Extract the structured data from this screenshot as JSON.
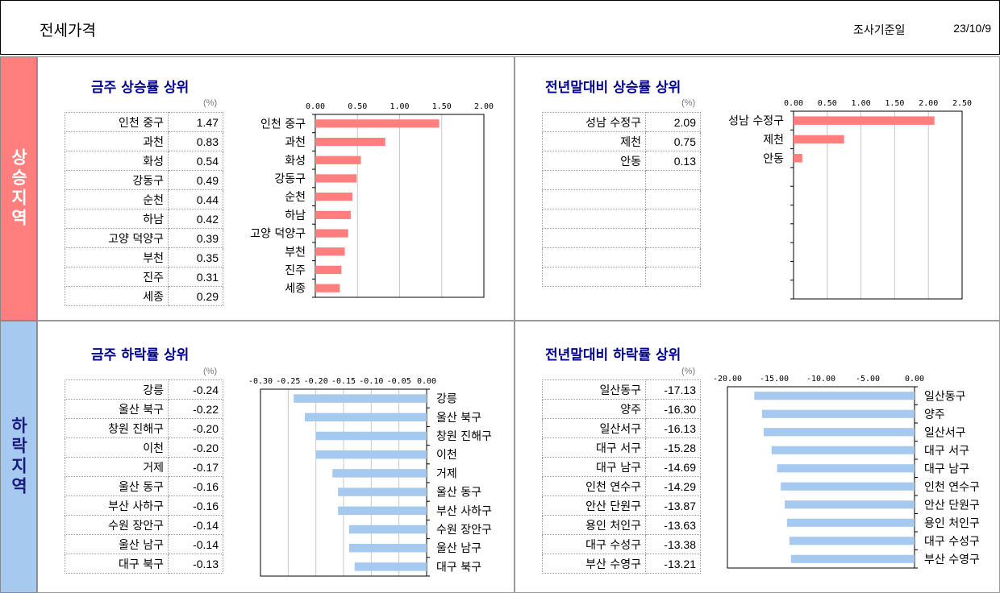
{
  "header": {
    "title": "전세가격",
    "date_label": "조사기준일",
    "date_value": "23/10/9"
  },
  "side": {
    "up": "상승지역",
    "down": "하락지역"
  },
  "colors": {
    "up_bar": "#ff7f7f",
    "down_bar": "#a6c9f0",
    "title": "#00008b"
  },
  "panels": {
    "wu": {
      "title": "금주 상승률 상위",
      "unit": "(%)",
      "rows": [
        {
          "name": "인천 중구",
          "value": "1.47"
        },
        {
          "name": "과천",
          "value": "0.83"
        },
        {
          "name": "화성",
          "value": "0.54"
        },
        {
          "name": "강동구",
          "value": "0.49"
        },
        {
          "name": "순천",
          "value": "0.44"
        },
        {
          "name": "하남",
          "value": "0.42"
        },
        {
          "name": "고양 덕양구",
          "value": "0.39"
        },
        {
          "name": "부천",
          "value": "0.35"
        },
        {
          "name": "진주",
          "value": "0.31"
        },
        {
          "name": "세종",
          "value": "0.29"
        }
      ]
    },
    "yu": {
      "title": "전년말대비 상승률 상위",
      "unit": "(%)",
      "rows": [
        {
          "name": "성남 수정구",
          "value": "2.09"
        },
        {
          "name": "제천",
          "value": "0.75"
        },
        {
          "name": "안동",
          "value": "0.13"
        },
        {
          "name": "",
          "value": ""
        },
        {
          "name": "",
          "value": ""
        },
        {
          "name": "",
          "value": ""
        },
        {
          "name": "",
          "value": ""
        },
        {
          "name": "",
          "value": ""
        },
        {
          "name": "",
          "value": ""
        }
      ]
    },
    "wd": {
      "title": "금주 하락률 상위",
      "unit": "(%)",
      "rows": [
        {
          "name": "강릉",
          "value": "-0.24"
        },
        {
          "name": "울산 북구",
          "value": "-0.22"
        },
        {
          "name": "창원 진해구",
          "value": "-0.20"
        },
        {
          "name": "이천",
          "value": "-0.20"
        },
        {
          "name": "거제",
          "value": "-0.17"
        },
        {
          "name": "울산 동구",
          "value": "-0.16"
        },
        {
          "name": "부산 사하구",
          "value": "-0.16"
        },
        {
          "name": "수원 장안구",
          "value": "-0.14"
        },
        {
          "name": "울산 남구",
          "value": "-0.14"
        },
        {
          "name": "대구 북구",
          "value": "-0.13"
        }
      ]
    },
    "yd": {
      "title": "전년말대비 하락률 상위",
      "unit": "(%)",
      "rows": [
        {
          "name": "일산동구",
          "value": "-17.13"
        },
        {
          "name": "양주",
          "value": "-16.30"
        },
        {
          "name": "일산서구",
          "value": "-16.13"
        },
        {
          "name": "대구 서구",
          "value": "-15.28"
        },
        {
          "name": "대구 남구",
          "value": "-14.69"
        },
        {
          "name": "인천 연수구",
          "value": "-14.29"
        },
        {
          "name": "안산 단원구",
          "value": "-13.87"
        },
        {
          "name": "용인 처인구",
          "value": "-13.63"
        },
        {
          "name": "대구 수성구",
          "value": "-13.38"
        },
        {
          "name": "부산 수영구",
          "value": "-13.21"
        }
      ]
    }
  },
  "chart_data": [
    {
      "type": "bar",
      "orientation": "horizontal",
      "categories": [
        "인천 중구",
        "과천",
        "화성",
        "강동구",
        "순천",
        "하남",
        "고양 덕양구",
        "부천",
        "진주",
        "세종"
      ],
      "values": [
        1.47,
        0.83,
        0.54,
        0.49,
        0.44,
        0.42,
        0.39,
        0.35,
        0.31,
        0.29
      ],
      "xlim": [
        0,
        2.0
      ],
      "ticks": [
        "0.00",
        "0.50",
        "1.00",
        "1.50",
        "2.00"
      ],
      "tick_values": [
        0,
        0.5,
        1.0,
        1.5,
        2.0
      ],
      "grid": true,
      "label_side": "left",
      "color": "#ff7f7f"
    },
    {
      "type": "bar",
      "orientation": "horizontal",
      "categories": [
        "성남 수정구",
        "제천",
        "안동"
      ],
      "values": [
        2.09,
        0.75,
        0.13
      ],
      "xlim": [
        0,
        2.5
      ],
      "ticks": [
        "0.00",
        "0.50",
        "1.00",
        "1.50",
        "2.00",
        "2.50"
      ],
      "tick_values": [
        0,
        0.5,
        1.0,
        1.5,
        2.0,
        2.5
      ],
      "grid": true,
      "label_side": "left",
      "color": "#ff7f7f"
    },
    {
      "type": "bar",
      "orientation": "horizontal",
      "categories": [
        "강릉",
        "울산 북구",
        "창원 진해구",
        "이천",
        "거제",
        "울산 동구",
        "부산 사하구",
        "수원 장안구",
        "울산 남구",
        "대구 북구"
      ],
      "values": [
        -0.24,
        -0.22,
        -0.2,
        -0.2,
        -0.17,
        -0.16,
        -0.16,
        -0.14,
        -0.14,
        -0.13
      ],
      "xlim": [
        -0.3,
        0
      ],
      "ticks": [
        "-0.30",
        "-0.25",
        "-0.20",
        "-0.15",
        "-0.10",
        "-0.05",
        "0.00"
      ],
      "tick_values": [
        -0.3,
        -0.25,
        -0.2,
        -0.15,
        -0.1,
        -0.05,
        0
      ],
      "grid": true,
      "label_side": "right",
      "color": "#a6c9f0"
    },
    {
      "type": "bar",
      "orientation": "horizontal",
      "categories": [
        "일산동구",
        "양주",
        "일산서구",
        "대구 서구",
        "대구 남구",
        "인천 연수구",
        "안산 단원구",
        "용인 처인구",
        "대구 수성구",
        "부산 수영구"
      ],
      "values": [
        -17.13,
        -16.3,
        -16.13,
        -15.28,
        -14.69,
        -14.29,
        -13.87,
        -13.63,
        -13.38,
        -13.21
      ],
      "xlim": [
        -20,
        0
      ],
      "ticks": [
        "-20.00",
        "-15.00",
        "-10.00",
        "-5.00",
        "0.00"
      ],
      "tick_values": [
        -20,
        -15,
        -10,
        -5,
        0
      ],
      "grid": false,
      "label_side": "right",
      "color": "#a6c9f0"
    }
  ]
}
